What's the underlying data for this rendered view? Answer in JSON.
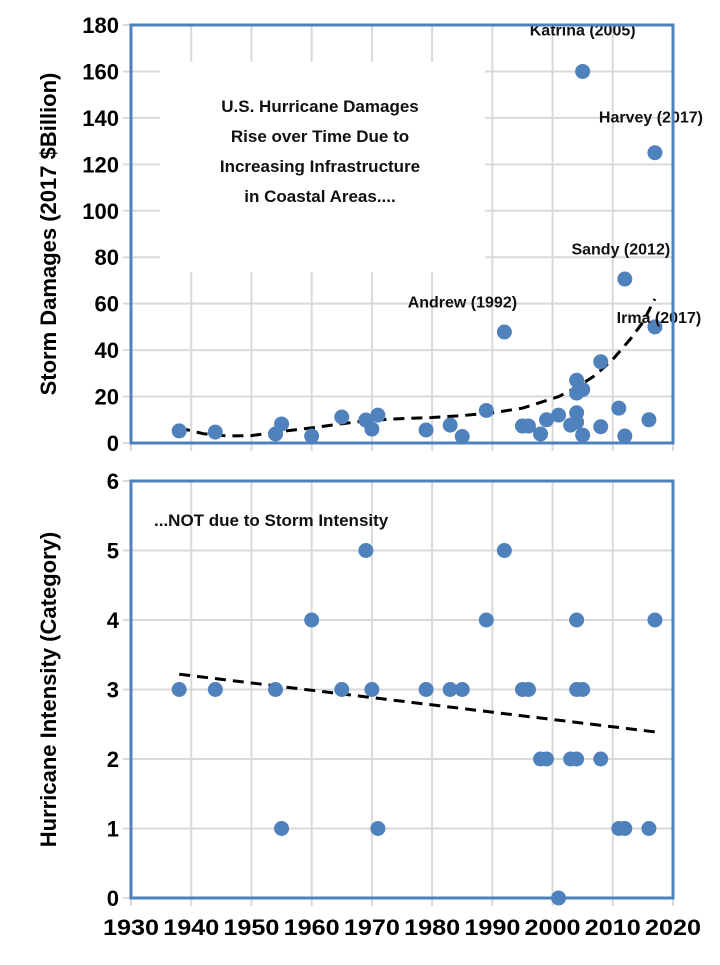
{
  "chart_data": [
    {
      "type": "scatter",
      "name": "damages",
      "title": "",
      "xlabel": "",
      "ylabel": "Storm Damages (2017 $Billion)",
      "xlim": [
        1930,
        2020
      ],
      "ylim": [
        0,
        180
      ],
      "x_ticks": [
        1930,
        1940,
        1950,
        1960,
        1970,
        1980,
        1990,
        2000,
        2010,
        2020
      ],
      "show_x_tick_labels": false,
      "y_ticks": [
        "0",
        "20",
        "40",
        "60",
        "80",
        "100",
        "120",
        "140",
        "160",
        "180"
      ],
      "grid": true,
      "annotation": [
        "U.S. Hurricane Damages",
        "Rise over Time Due to",
        "Increasing Infrastructure",
        "in Coastal Areas...."
      ],
      "callouts": [
        {
          "label": "Katrina (2005)",
          "x": 2005,
          "y": 160
        },
        {
          "label": "Harvey (2017)",
          "x": 2017,
          "y": 125
        },
        {
          "label": "Sandy (2012)",
          "x": 2012,
          "y": 70
        },
        {
          "label": "Andrew (1992)",
          "x": 1992,
          "y": 48
        },
        {
          "label": "Irma (2017)",
          "x": 2017,
          "y": 50
        }
      ],
      "series": [
        {
          "name": "Storm Damages",
          "color": "#4f81bd",
          "points": [
            [
              1938,
              5.2
            ],
            [
              1944,
              4.7
            ],
            [
              1954,
              3.9
            ],
            [
              1955,
              8.2
            ],
            [
              1960,
              3.0
            ],
            [
              1965,
              11.2
            ],
            [
              1969,
              9.9
            ],
            [
              1970,
              6.0
            ],
            [
              1971,
              12.0
            ],
            [
              1979,
              5.6
            ],
            [
              1983,
              7.7
            ],
            [
              1985,
              2.8
            ],
            [
              1989,
              14.0
            ],
            [
              1992,
              47.8
            ],
            [
              1995,
              7.3
            ],
            [
              1996,
              7.3
            ],
            [
              1998,
              3.9
            ],
            [
              1999,
              10.0
            ],
            [
              2001,
              12.0
            ],
            [
              2003,
              7.7
            ],
            [
              2004,
              27.0
            ],
            [
              2004,
              21.5
            ],
            [
              2004,
              13.0
            ],
            [
              2004,
              9.0
            ],
            [
              2005,
              23.0
            ],
            [
              2005,
              160.0
            ],
            [
              2005,
              3.4
            ],
            [
              2008,
              35.0
            ],
            [
              2008,
              7.0
            ],
            [
              2011,
              15.0
            ],
            [
              2012,
              70.6
            ],
            [
              2012,
              3.0
            ],
            [
              2016,
              10.0
            ],
            [
              2017,
              125.0
            ],
            [
              2017,
              50.0
            ]
          ]
        },
        {
          "name": "Trend",
          "style": "dashed",
          "color": "#000000",
          "points": [
            [
              1938,
              6.5
            ],
            [
              1942,
              4.0
            ],
            [
              1946,
              3.0
            ],
            [
              1950,
              3.2
            ],
            [
              1955,
              5.0
            ],
            [
              1960,
              6.5
            ],
            [
              1965,
              8.3
            ],
            [
              1970,
              9.8
            ],
            [
              1975,
              10.5
            ],
            [
              1980,
              11.0
            ],
            [
              1985,
              11.8
            ],
            [
              1990,
              13.0
            ],
            [
              1995,
              15.0
            ],
            [
              1998,
              17.5
            ],
            [
              2001,
              20.0
            ],
            [
              2004,
              24.0
            ],
            [
              2007,
              29.0
            ],
            [
              2010,
              36.0
            ],
            [
              2013,
              45.0
            ],
            [
              2015,
              52.0
            ],
            [
              2017,
              62.0
            ]
          ]
        }
      ]
    },
    {
      "type": "scatter",
      "name": "intensity",
      "title": "",
      "xlabel": "",
      "ylabel": "Hurricane Intensity (Category)",
      "xlim": [
        1930,
        2020
      ],
      "ylim": [
        0,
        6
      ],
      "x_ticks": [
        "1930",
        "1940",
        "1950",
        "1960",
        "1970",
        "1980",
        "1990",
        "2000",
        "2010",
        "2020"
      ],
      "y_ticks": [
        "0",
        "1",
        "2",
        "3",
        "4",
        "5",
        "6"
      ],
      "grid": true,
      "annotation": [
        "...NOT due to Storm Intensity"
      ],
      "series": [
        {
          "name": "Hurricane Category",
          "color": "#4f81bd",
          "points": [
            [
              1938,
              3
            ],
            [
              1944,
              3
            ],
            [
              1954,
              3
            ],
            [
              1955,
              1
            ],
            [
              1960,
              4
            ],
            [
              1965,
              3
            ],
            [
              1969,
              5
            ],
            [
              1970,
              3
            ],
            [
              1971,
              1
            ],
            [
              1979,
              3
            ],
            [
              1983,
              3
            ],
            [
              1985,
              3
            ],
            [
              1989,
              4
            ],
            [
              1992,
              5
            ],
            [
              1995,
              3
            ],
            [
              1996,
              3
            ],
            [
              1998,
              2
            ],
            [
              1999,
              2
            ],
            [
              2001,
              0
            ],
            [
              2003,
              2
            ],
            [
              2004,
              2
            ],
            [
              2004,
              4
            ],
            [
              2004,
              3
            ],
            [
              2005,
              3
            ],
            [
              2008,
              2
            ],
            [
              2011,
              1
            ],
            [
              2012,
              1
            ],
            [
              2016,
              1
            ],
            [
              2017,
              4
            ]
          ]
        },
        {
          "name": "Trend",
          "style": "dashed",
          "color": "#000000",
          "points": [
            [
              1938,
              3.22
            ],
            [
              2017,
              2.39
            ]
          ]
        }
      ]
    }
  ]
}
